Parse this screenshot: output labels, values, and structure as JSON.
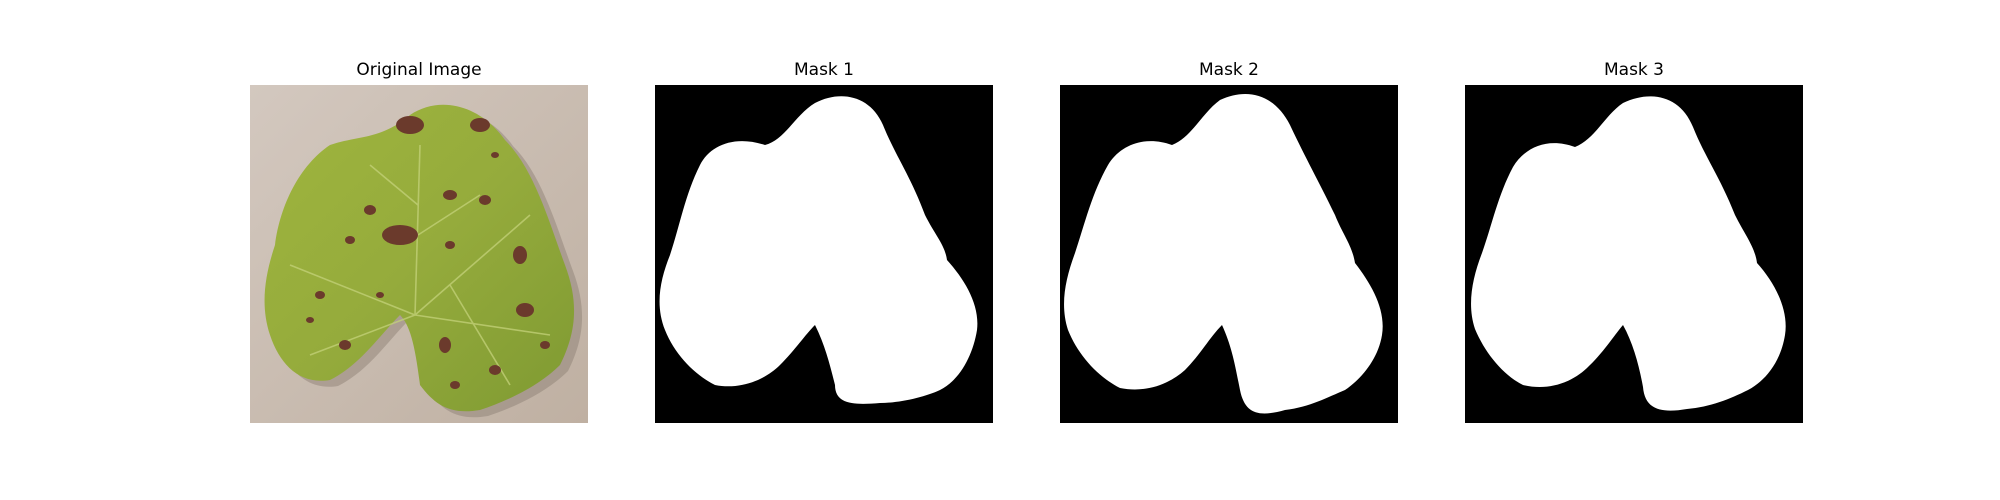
{
  "panels": [
    {
      "title": "Original Image",
      "kind": "photo"
    },
    {
      "title": "Mask 1",
      "kind": "mask"
    },
    {
      "title": "Mask 2",
      "kind": "mask"
    },
    {
      "title": "Mask 3",
      "kind": "mask"
    }
  ],
  "colors": {
    "background": "#cdbfb2",
    "leaf_light": "#a7b84a",
    "leaf_mid": "#8fa33a",
    "leaf_dark": "#6f8a2c",
    "lesion": "#6b3a2c",
    "mask_fg": "#ffffff",
    "mask_bg": "#000000"
  }
}
